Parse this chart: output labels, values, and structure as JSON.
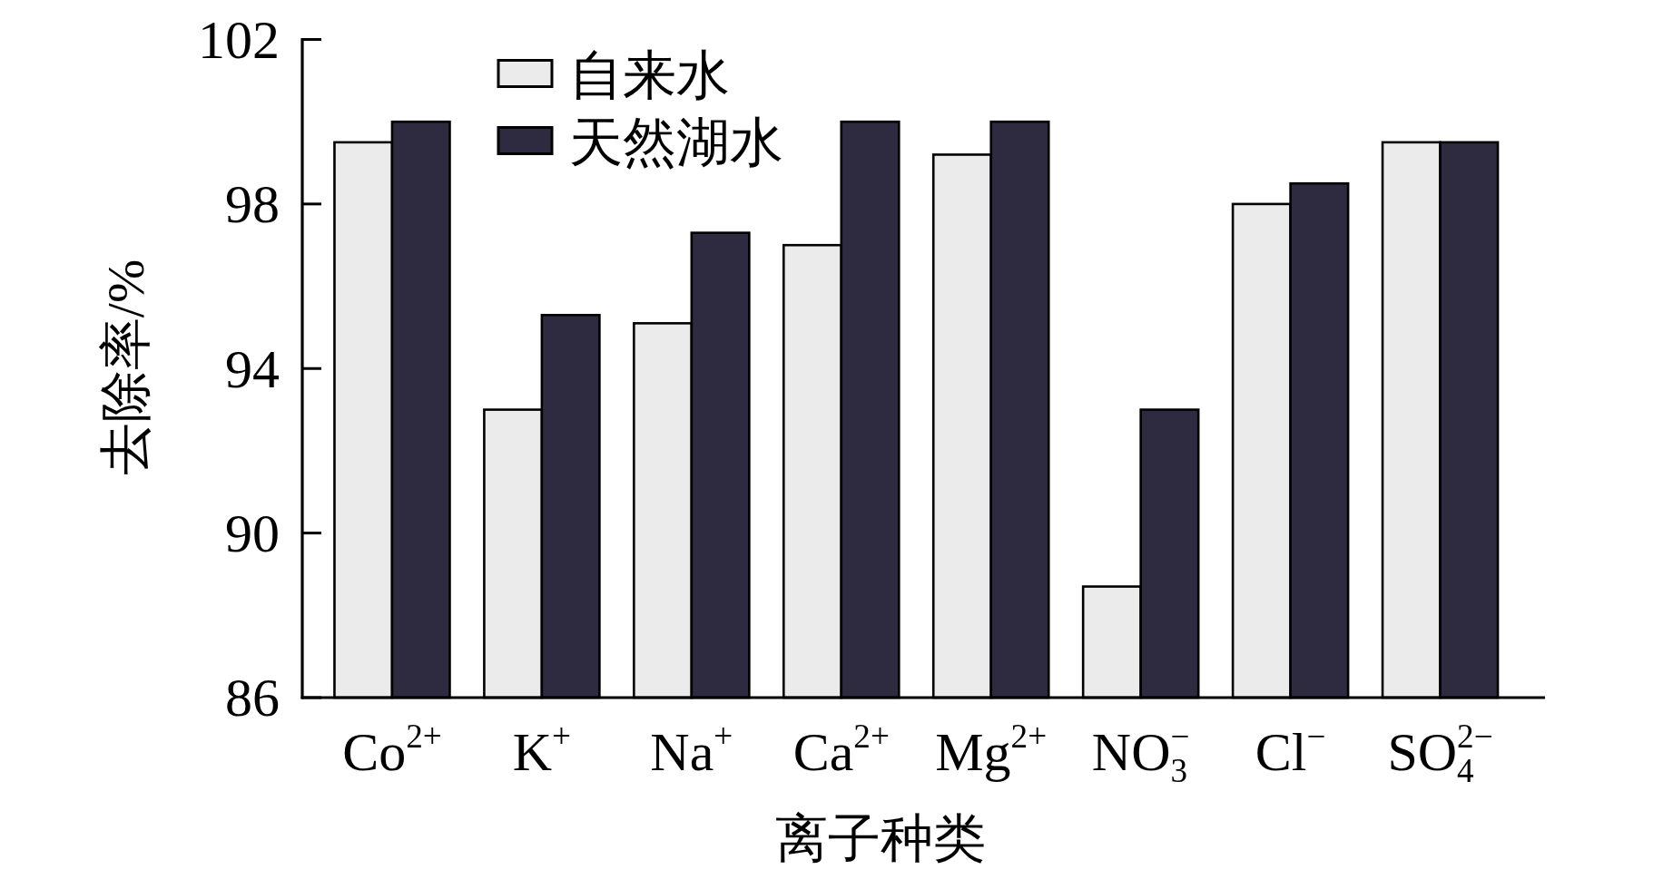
{
  "chart_data": {
    "type": "bar",
    "xlabel": "离子种类",
    "ylabel": "去除率/%",
    "categories": [
      "Co$^{2+}$",
      "K$^{+}$",
      "Na$^{+}$",
      "Ca$^{2+}$",
      "Mg$^{2+}$",
      "NO$_{3}$$^{−}$",
      "Cl$^{−}$",
      "SO$_{4}$$^{2−}$"
    ],
    "ylim": [
      86,
      102
    ],
    "yticks": [
      86,
      90,
      94,
      98,
      102
    ],
    "legend": "top left",
    "series": [
      {
        "name": "自来水",
        "color": "#ebebeb",
        "values": [
          99.5,
          93.0,
          95.1,
          97.0,
          99.2,
          88.7,
          98.0,
          99.5
        ]
      },
      {
        "name": "天然湖水",
        "color": "#2e2a40",
        "values": [
          100.0,
          95.3,
          97.3,
          100.0,
          100.0,
          93.0,
          98.5,
          99.5
        ]
      }
    ]
  }
}
